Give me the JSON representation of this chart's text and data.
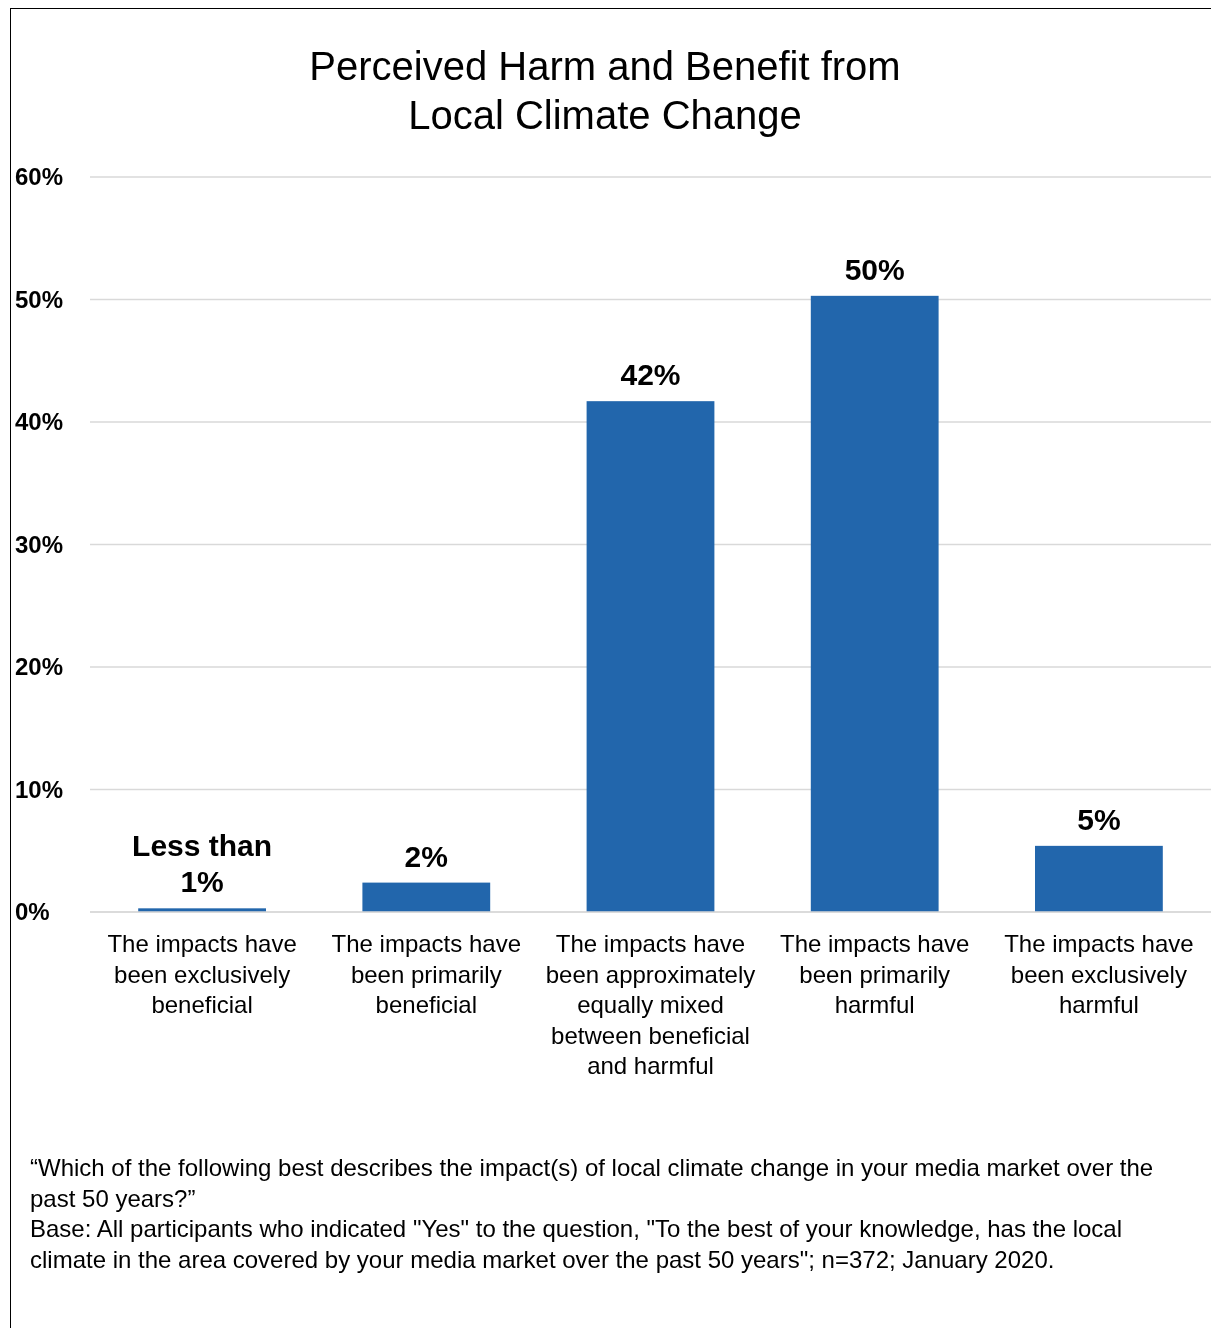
{
  "chart_data": {
    "type": "bar",
    "title": "Perceived Harm and Benefit from Local Climate Change",
    "categories": [
      "The impacts have been exclusively beneficial",
      "The impacts have been primarily beneficial",
      "The impacts have been approximately equally mixed between beneficial and harmful",
      "The impacts have been primarily harmful",
      "The impacts have been exclusively harmful"
    ],
    "values": [
      0.3,
      2.4,
      41.7,
      50.3,
      5.4
    ],
    "value_labels": [
      "Less than 1%",
      "2%",
      "42%",
      "50%",
      "5%"
    ],
    "color": "#2266ac",
    "ylim": [
      0,
      60
    ],
    "yticks": [
      {
        "value": 0,
        "label": "0%"
      },
      {
        "value": 10,
        "label": "10%"
      },
      {
        "value": 20,
        "label": "20%"
      },
      {
        "value": 30,
        "label": "30%"
      },
      {
        "value": 40,
        "label": "40%"
      },
      {
        "value": 50,
        "label": "50%"
      },
      {
        "value": 60,
        "label": "60%"
      }
    ],
    "grid": "y",
    "annotations": [
      "“Which of the following best describes the impact(s) of local climate change in your media market over the past 50 years?”",
      "Base: All participants who indicated \"Yes\" to the question, \"To the best of your knowledge, has the local climate in the area covered by your media market over the past 50 years\"; n=372; January 2020."
    ]
  }
}
